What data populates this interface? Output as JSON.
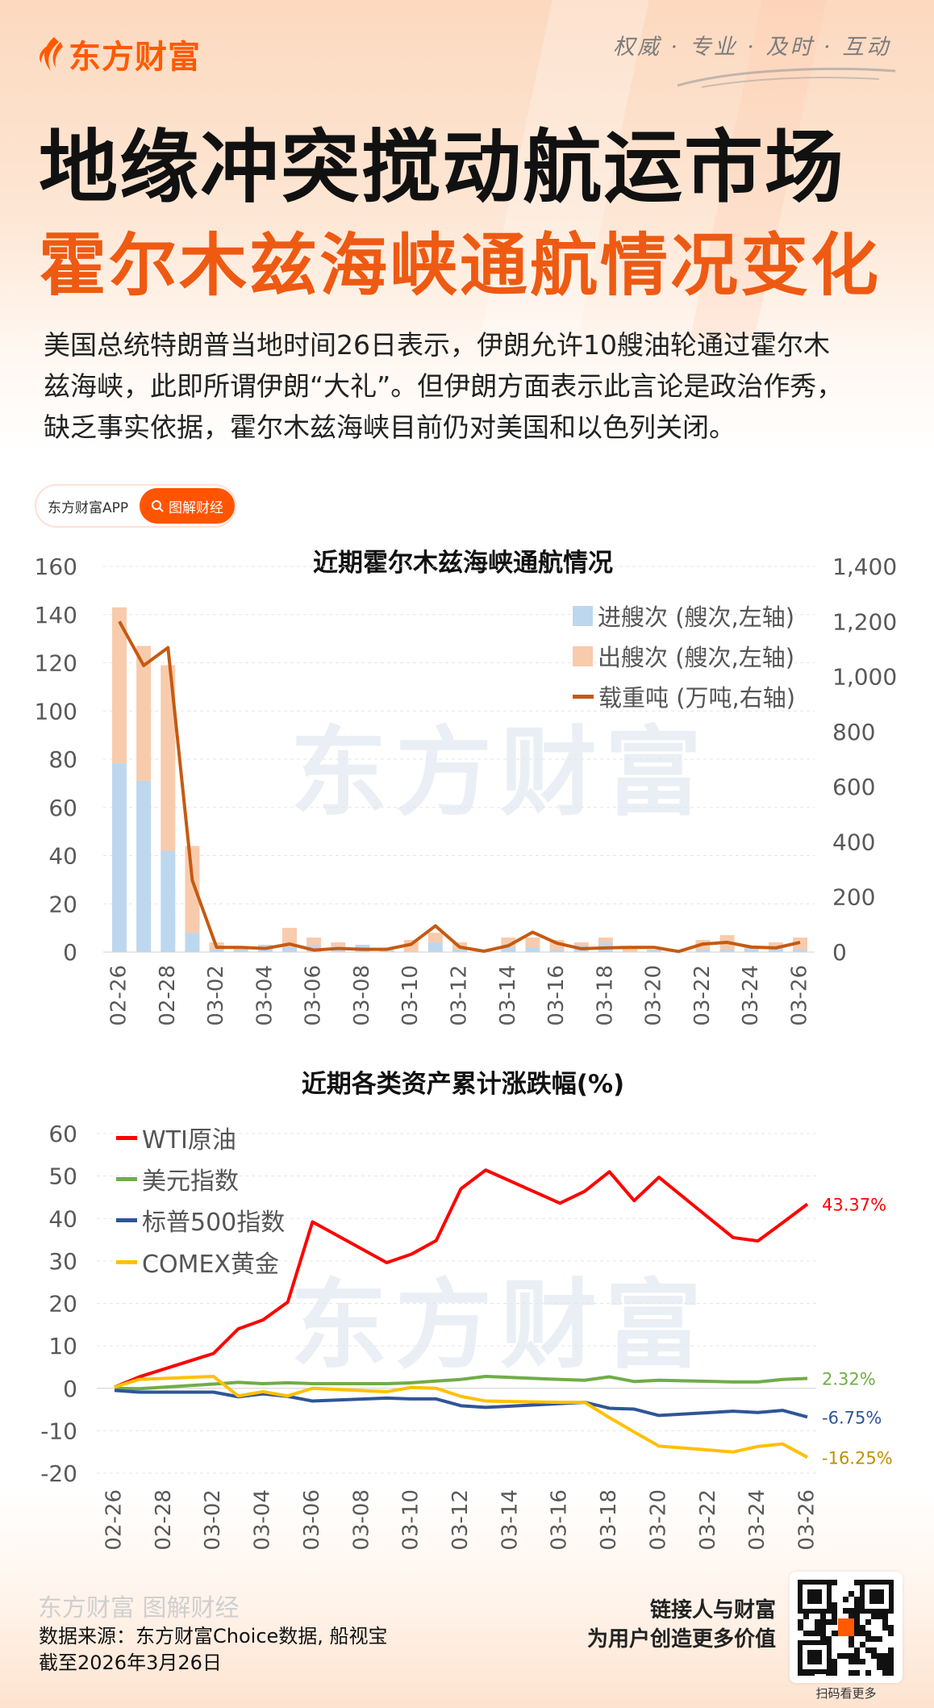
{
  "header": {
    "brand": "东方财富",
    "slogan": "权威 · 专业 · 及时 · 互动",
    "title_line1": "地缘冲突搅动航运市场",
    "title_line2": "霍尔木兹海峡通航情况变化",
    "intro_lines": [
      "美国总统特朗普当地时间26日表示，伊朗允许10艘油轮通过霍尔木",
      "兹海峡，此即所谓伊朗“大礼”。但伊朗方面表示此言论是政治作秀，",
      "缺乏事实依据，霍尔木兹海峡目前仍对美国和以色列关闭。"
    ]
  },
  "pill": {
    "app_label": "东方财富APP",
    "button_label": "图解财经",
    "button_icon": "search-icon",
    "accent": "#ff5500"
  },
  "watermark": "东方财富",
  "chart_data": [
    {
      "type": "bar+line",
      "title": "近期霍尔木兹海峡通航情况",
      "categories": [
        "02-26",
        "02-27",
        "02-28",
        "03-01",
        "03-02",
        "03-03",
        "03-04",
        "03-05",
        "03-06",
        "03-07",
        "03-08",
        "03-09",
        "03-10",
        "03-11",
        "03-12",
        "03-13",
        "03-14",
        "03-15",
        "03-16",
        "03-17",
        "03-18",
        "03-19",
        "03-20",
        "03-21",
        "03-22",
        "03-23",
        "03-24",
        "03-25",
        "03-26"
      ],
      "x_tick_labels": [
        "02-26",
        "02-28",
        "03-02",
        "03-04",
        "03-06",
        "03-08",
        "03-10",
        "03-12",
        "03-14",
        "03-16",
        "03-18",
        "03-20",
        "03-22",
        "03-24",
        "03-26"
      ],
      "left_axis": {
        "ylim": [
          0,
          160
        ],
        "ticks": [
          "0",
          "20",
          "40",
          "60",
          "80",
          "100",
          "120",
          "140",
          "160"
        ]
      },
      "right_axis": {
        "ylim": [
          0,
          1400
        ],
        "ticks": [
          "0",
          "200",
          "400",
          "600",
          "800",
          "1,000",
          "1,200",
          "1,400"
        ]
      },
      "stacked": true,
      "series": [
        {
          "name": "进艘次 (艘次,左轴)",
          "kind": "bar",
          "axis": "left",
          "color": "#bdd7ee",
          "values": [
            78,
            71,
            42,
            8,
            1,
            1,
            3,
            2,
            3,
            1,
            3,
            1,
            0,
            4,
            1,
            0,
            2,
            2,
            1,
            3,
            4,
            0,
            1,
            0,
            1,
            1,
            2,
            2,
            1
          ]
        },
        {
          "name": "出艘次 (艘次,左轴)",
          "kind": "bar",
          "axis": "left",
          "color": "#f8cbad",
          "values": [
            65,
            56,
            77,
            36,
            3,
            1,
            0,
            8,
            3,
            3,
            0,
            0,
            5,
            4,
            3,
            1,
            4,
            4,
            4,
            1,
            2,
            2,
            0,
            0,
            4,
            6,
            0,
            2,
            5
          ]
        },
        {
          "name": "载重吨 (万吨,右轴)",
          "kind": "line",
          "axis": "right",
          "color": "#c55a11",
          "values": [
            1200,
            1040,
            1105,
            260,
            17,
            17,
            13,
            29,
            7,
            13,
            10,
            10,
            28,
            95,
            18,
            3,
            23,
            72,
            32,
            12,
            15,
            17,
            17,
            2,
            29,
            35,
            18,
            15,
            35
          ]
        }
      ],
      "legend": "top-right",
      "grid": true
    },
    {
      "type": "line",
      "title": "近期各类资产累计涨跌幅(%)",
      "categories": [
        "02-26",
        "02-27",
        "02-28",
        "03-01",
        "03-02",
        "03-03",
        "03-04",
        "03-05",
        "03-06",
        "03-07",
        "03-08",
        "03-09",
        "03-10",
        "03-11",
        "03-12",
        "03-13",
        "03-14",
        "03-15",
        "03-16",
        "03-17",
        "03-18",
        "03-19",
        "03-20",
        "03-21",
        "03-22",
        "03-23",
        "03-24",
        "03-25",
        "03-26"
      ],
      "x_tick_labels": [
        "02-26",
        "02-28",
        "03-02",
        "03-04",
        "03-06",
        "03-08",
        "03-10",
        "03-12",
        "03-14",
        "03-16",
        "03-18",
        "03-20",
        "03-22",
        "03-24",
        "03-26"
      ],
      "ylim": [
        -20,
        60
      ],
      "y_ticks": [
        "-20",
        "-10",
        "0",
        "10",
        "20",
        "30",
        "40",
        "50",
        "60"
      ],
      "series": [
        {
          "name": "WTI原油",
          "color": "#ff0000",
          "label_color": "#ff0000",
          "end_label": "43.37%",
          "values": [
            0.3,
            2.7,
            null,
            null,
            8.2,
            14.0,
            16.1,
            20.3,
            39.2,
            null,
            null,
            29.6,
            31.6,
            34.8,
            47.0,
            51.4,
            null,
            null,
            43.6,
            46.4,
            51.0,
            44.2,
            49.7,
            null,
            null,
            35.5,
            34.7,
            39.0,
            43.37
          ]
        },
        {
          "name": "美元指数",
          "color": "#70ad47",
          "label_color": "#70ad47",
          "end_label": "2.32%",
          "values": [
            0.0,
            -0.1,
            null,
            null,
            1.0,
            1.4,
            1.1,
            1.3,
            1.1,
            null,
            null,
            1.1,
            1.3,
            1.7,
            2.1,
            2.8,
            null,
            null,
            2.1,
            1.9,
            2.7,
            1.6,
            1.9,
            null,
            null,
            1.5,
            1.5,
            2.1,
            2.32
          ]
        },
        {
          "name": "标普500指数",
          "color": "#2f5597",
          "label_color": "#2f5597",
          "end_label": "-6.75%",
          "values": [
            -0.5,
            -0.9,
            null,
            null,
            -0.9,
            -2.0,
            -1.3,
            -1.9,
            -3.0,
            null,
            null,
            -2.3,
            -2.5,
            -2.5,
            -4.1,
            -4.5,
            null,
            null,
            -3.6,
            -3.3,
            -4.7,
            -4.9,
            -6.4,
            null,
            null,
            -5.4,
            -5.7,
            -5.2,
            -6.75
          ]
        },
        {
          "name": "COMEX黄金",
          "color": "#ffc000",
          "label_color": "#bf9000",
          "end_label": "-16.25%",
          "values": [
            0.3,
            2.1,
            null,
            null,
            2.8,
            -1.8,
            -0.8,
            -1.8,
            0.0,
            null,
            null,
            -0.8,
            0.2,
            0.0,
            -1.9,
            -3.0,
            null,
            null,
            -3.3,
            -3.3,
            -6.9,
            -10.3,
            -13.6,
            null,
            null,
            -15.0,
            -13.7,
            -13.1,
            -16.25
          ]
        }
      ],
      "legend": "top-left",
      "grid": true
    }
  ],
  "footer": {
    "brand": "东方财富 图解财经",
    "source": "数据来源：东方财富Choice数据, 船视宝",
    "as_of": "截至2026年3月26日",
    "tagline1": "链接人与财富",
    "tagline2": "为用户创造更多价值",
    "qr_caption": "扫码看更多"
  }
}
